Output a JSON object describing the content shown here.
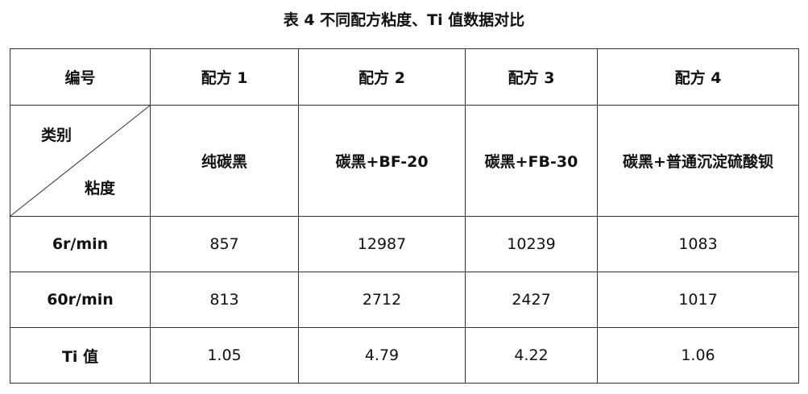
{
  "title": "表 4  不同配方粘度、Ti 值数据对比",
  "header": {
    "label": "编号",
    "columns": [
      "配方 1",
      "配方 2",
      "配方 3",
      "配方 4"
    ]
  },
  "category_row": {
    "diag_top": "类别",
    "diag_bottom": "粘度",
    "values": [
      "纯碳黑",
      "碳黑+BF-20",
      "碳黑+FB-30",
      "碳黑+普通沉淀硫酸钡"
    ]
  },
  "rows": [
    {
      "label": "6r/min",
      "values": [
        "857",
        "12987",
        "10239",
        "1083"
      ]
    },
    {
      "label": "60r/min",
      "values": [
        "813",
        "2712",
        "2427",
        "1017"
      ]
    },
    {
      "label": "Ti 值",
      "values": [
        "1.05",
        "4.79",
        "4.22",
        "1.06"
      ]
    }
  ]
}
